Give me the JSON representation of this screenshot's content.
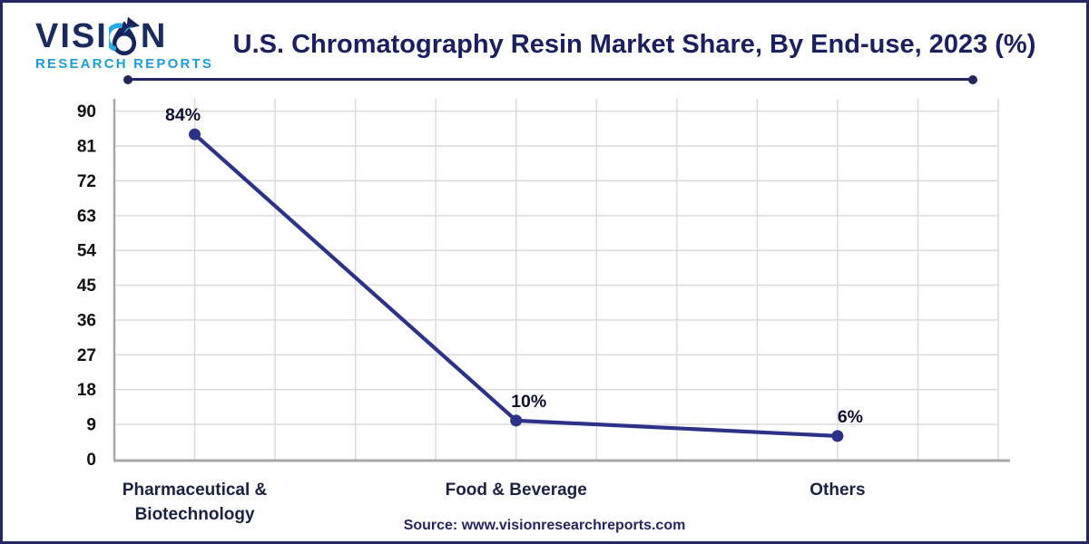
{
  "logo": {
    "word_start": "VISI",
    "word_end": "N",
    "line2": "RESEARCH REPORTS"
  },
  "header": {
    "title": "U.S. Chromatography Resin Market Share, By End-use, 2023 (%)"
  },
  "source": {
    "text": "Source: www.visionresearchreports.com"
  },
  "colors": {
    "accent_navy": "#23265f",
    "title_navy": "#1b1f5e",
    "line": "#2c3287",
    "logo_blue": "#1e9cd7",
    "drop_cyan": "#29abe2",
    "grid": "#d9d9d9",
    "axis": "#a8a8a8",
    "tick_label": "#111111",
    "data_label": "#0f1030",
    "category_label": "#1b2240"
  },
  "chart_data": {
    "type": "line",
    "title": "U.S. Chromatography Resin Market Share, By End-use, 2023 (%)",
    "categories": [
      "Pharmaceutical &\nBiotechnology",
      "Food & Beverage",
      "Others"
    ],
    "values": [
      84,
      10,
      6
    ],
    "labels": [
      "84%",
      "10%",
      "6%"
    ],
    "yticks": [
      0,
      9,
      18,
      27,
      36,
      45,
      54,
      63,
      72,
      81,
      90
    ],
    "ylim": [
      0,
      90
    ],
    "grid": true,
    "legend": "none",
    "xlabel": "",
    "ylabel": ""
  }
}
